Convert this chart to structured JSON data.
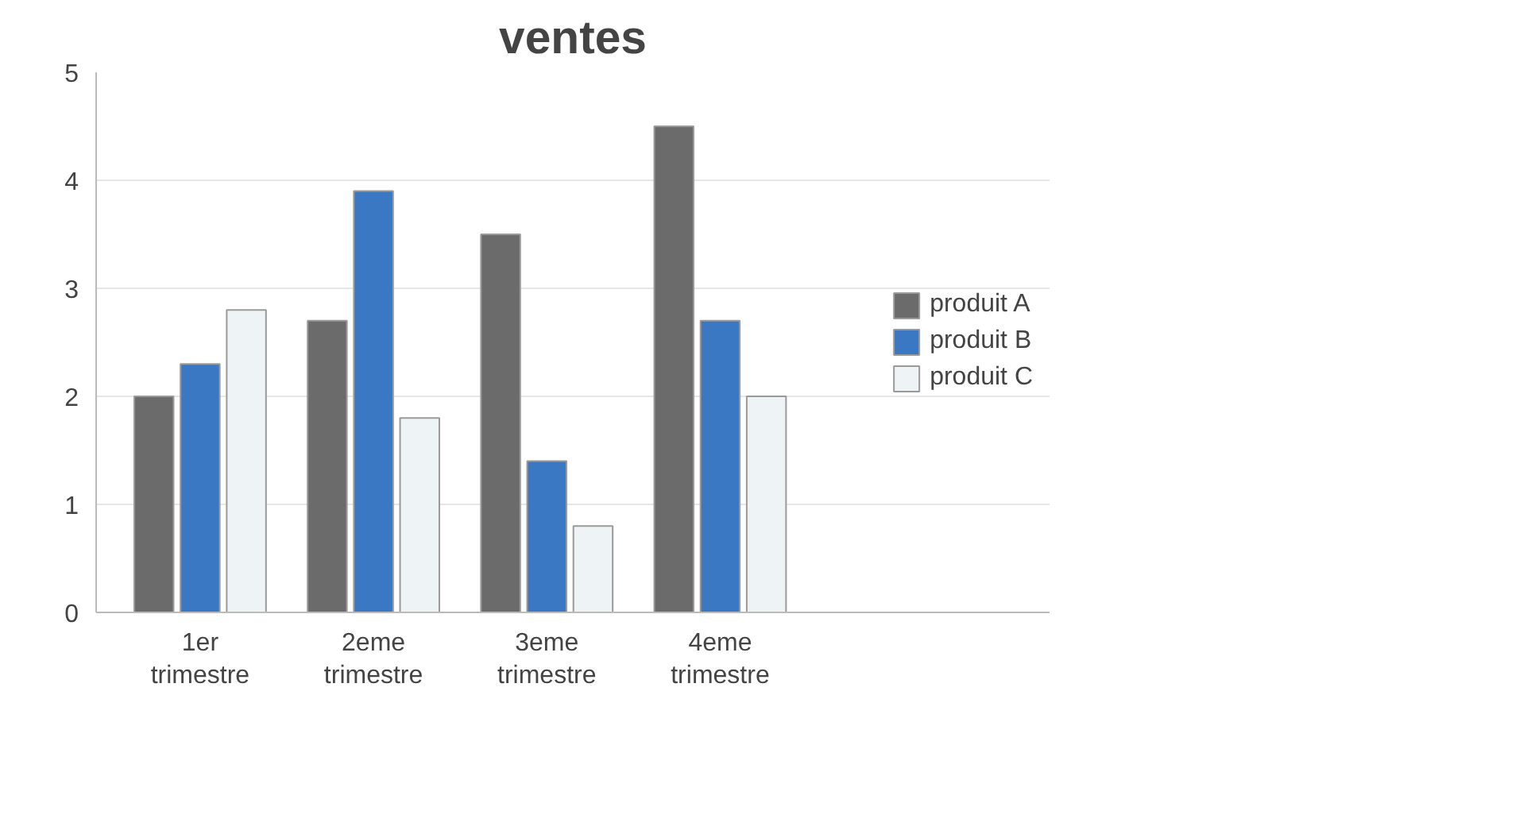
{
  "chart_data": {
    "type": "bar",
    "title": "ventes",
    "categories": [
      "1er trimestre",
      "2eme trimestre",
      "3eme trimestre",
      "4eme trimestre"
    ],
    "series": [
      {
        "name": "produit A",
        "color": "#6b6b6b",
        "values": [
          2,
          2.7,
          3.5,
          4.5
        ]
      },
      {
        "name": "produit B",
        "color": "#3a78c4",
        "values": [
          2.3,
          3.9,
          1.4,
          2.7
        ]
      },
      {
        "name": "produit C",
        "color": "#eef3f6",
        "values": [
          2.8,
          1.8,
          0.8,
          2.0
        ]
      }
    ],
    "ylim": [
      0,
      5
    ],
    "yticks": [
      0,
      1,
      2,
      3,
      4,
      5
    ],
    "grid": "y",
    "legend": "right"
  }
}
